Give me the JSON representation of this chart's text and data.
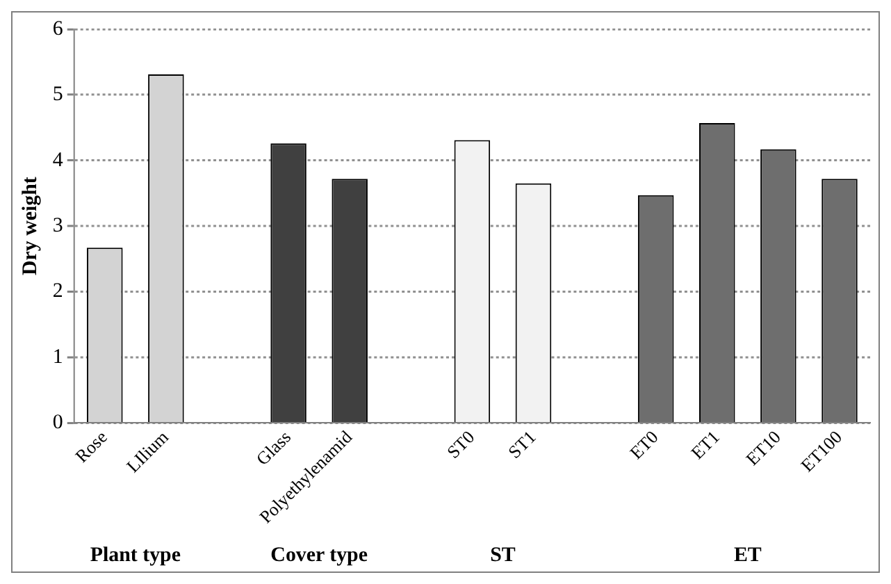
{
  "chart_data": {
    "type": "bar",
    "ylabel": "Dry weight",
    "categories": [
      "Rose",
      "LIlium",
      null,
      "Glass",
      "Polyethylenamid",
      null,
      "ST0",
      "ST1",
      null,
      "ET0",
      "ET1",
      "ET10",
      "ET100"
    ],
    "values": [
      2.67,
      5.31,
      null,
      4.26,
      3.72,
      null,
      4.31,
      3.65,
      null,
      3.47,
      4.57,
      4.17,
      3.72
    ],
    "colors": [
      "#d3d3d3",
      "#d3d3d3",
      null,
      "#404040",
      "#404040",
      null,
      "#f2f2f2",
      "#f2f2f2",
      null,
      "#6e6e6e",
      "#6e6e6e",
      "#6e6e6e",
      "#6e6e6e"
    ],
    "ylim": [
      0,
      6
    ],
    "yticks": [
      0,
      1,
      2,
      3,
      4,
      5,
      6
    ],
    "grid": "y",
    "annotations": [
      "Plant type",
      "Cover type",
      "ST",
      "ET"
    ]
  }
}
